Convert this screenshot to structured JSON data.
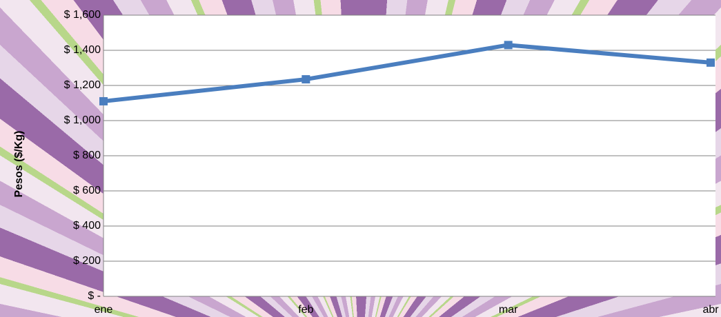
{
  "chart_data": {
    "type": "line",
    "y_label": "Pesos ($/Kg)",
    "categories": [
      "ene",
      "feb",
      "mar",
      "abr"
    ],
    "values": [
      1110,
      1235,
      1430,
      1330
    ],
    "color": "#4a7ebf",
    "ylim": [
      0,
      1600
    ],
    "yticks": [
      {
        "value": 0,
        "label": "$ -"
      },
      {
        "value": 200,
        "label": "$ 200"
      },
      {
        "value": 400,
        "label": "$ 400"
      },
      {
        "value": 600,
        "label": "$ 600"
      },
      {
        "value": 800,
        "label": "$ 800"
      },
      {
        "value": 1000,
        "label": "$ 1,000"
      },
      {
        "value": 1200,
        "label": "$ 1,200"
      },
      {
        "value": 1400,
        "label": "$ 1,400"
      },
      {
        "value": 1600,
        "label": "$ 1,600"
      }
    ],
    "grid": true
  }
}
